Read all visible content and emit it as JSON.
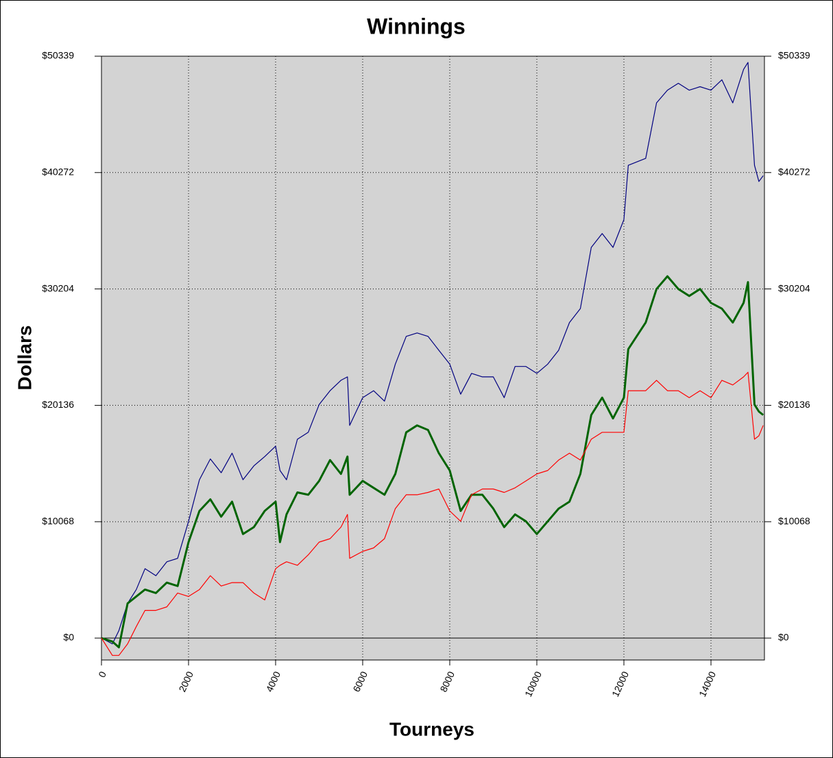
{
  "chart_data": {
    "type": "line",
    "title": "Winnings",
    "x_label": "Tourneys",
    "y_label": "Dollars",
    "x": [
      0,
      250,
      400,
      600,
      800,
      1000,
      1250,
      1500,
      1750,
      2000,
      2250,
      2500,
      2750,
      3000,
      3250,
      3500,
      3750,
      4000,
      4100,
      4250,
      4500,
      4750,
      5000,
      5250,
      5500,
      5650,
      5700,
      6000,
      6250,
      6500,
      6750,
      7000,
      7250,
      7500,
      7750,
      8000,
      8250,
      8500,
      8750,
      9000,
      9250,
      9500,
      9750,
      10000,
      10250,
      10500,
      10750,
      11000,
      11250,
      11500,
      11750,
      12000,
      12100,
      12500,
      12750,
      13000,
      13250,
      13500,
      13750,
      14000,
      14250,
      14500,
      14750,
      14850,
      15000,
      15100,
      15200
    ],
    "series": [
      {
        "color": "#000080",
        "width": 1.2,
        "values": [
          0,
          -500,
          650,
          3000,
          4200,
          6000,
          5400,
          6600,
          6900,
          10100,
          13700,
          15500,
          14300,
          16000,
          13700,
          14900,
          15700,
          16600,
          14500,
          13700,
          17200,
          17800,
          20200,
          21400,
          22300,
          22600,
          18400,
          20800,
          21400,
          20500,
          23700,
          26100,
          26400,
          26100,
          24900,
          23700,
          21100,
          22900,
          22600,
          22600,
          20800,
          23500,
          23500,
          22900,
          23700,
          24900,
          27300,
          28500,
          33800,
          35000,
          33800,
          36200,
          40900,
          41500,
          46300,
          47400,
          48000,
          47400,
          47700,
          47400,
          48300,
          46300,
          49200,
          49800,
          40900,
          39500,
          40000
        ]
      },
      {
        "color": "#006400",
        "width": 3,
        "values": [
          0,
          -300,
          -800,
          3000,
          3600,
          4200,
          3900,
          4800,
          4500,
          8300,
          11000,
          12000,
          10500,
          11800,
          9000,
          9600,
          11000,
          11800,
          8300,
          10700,
          12600,
          12400,
          13600,
          15400,
          14200,
          15700,
          12400,
          13600,
          13000,
          12400,
          14200,
          17800,
          18400,
          18000,
          16000,
          14500,
          11000,
          12400,
          12400,
          11200,
          9600,
          10700,
          10100,
          9000,
          10100,
          11200,
          11800,
          14200,
          19300,
          20800,
          19000,
          20800,
          25000,
          27300,
          30200,
          31300,
          30200,
          29600,
          30200,
          29000,
          28500,
          27300,
          29000,
          30800,
          20200,
          19600,
          19300
        ]
      },
      {
        "color": "#ff0000",
        "width": 1.2,
        "values": [
          0,
          -1500,
          -1500,
          -500,
          1000,
          2400,
          2400,
          2700,
          3900,
          3600,
          4200,
          5400,
          4500,
          4800,
          4800,
          3900,
          3300,
          6000,
          6300,
          6600,
          6300,
          7200,
          8300,
          8600,
          9600,
          10700,
          6900,
          7500,
          7800,
          8600,
          11200,
          12400,
          12400,
          12600,
          12900,
          11000,
          10100,
          12400,
          12900,
          12900,
          12600,
          13000,
          13600,
          14200,
          14500,
          15400,
          16000,
          15400,
          17200,
          17800,
          17800,
          17800,
          21400,
          21400,
          22300,
          21400,
          21400,
          20800,
          21400,
          20800,
          22300,
          21900,
          22600,
          23000,
          17200,
          17500,
          18400
        ]
      }
    ],
    "xlim": [
      0,
      15228
    ],
    "xticks": [
      0,
      2000,
      4000,
      6000,
      8000,
      10000,
      12000,
      14000
    ],
    "ylim": [
      -1895,
      50339
    ],
    "yticks": [
      {
        "value": 0,
        "label": "$0"
      },
      {
        "value": 10068,
        "label": "$10068"
      },
      {
        "value": 20136,
        "label": "$20136"
      },
      {
        "value": 30204,
        "label": "$30204"
      },
      {
        "value": 40272,
        "label": "$40272"
      },
      {
        "value": 50339,
        "label": "$50339"
      }
    ],
    "grid": true,
    "background": "#d3d3d3"
  }
}
